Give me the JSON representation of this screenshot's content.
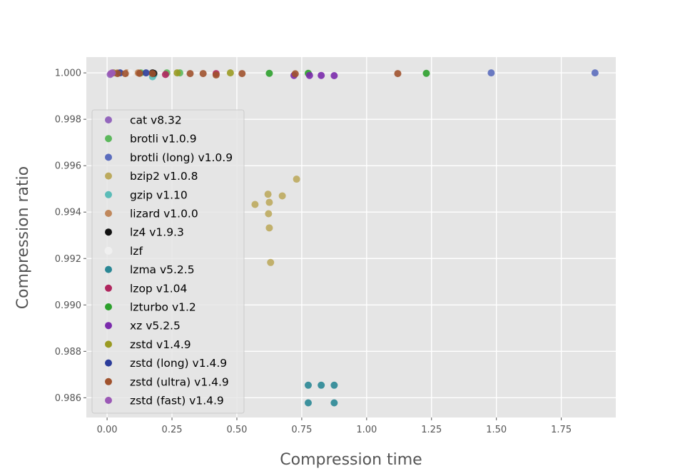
{
  "chart_data": {
    "type": "scatter",
    "title": "",
    "xlabel": "Compression time",
    "ylabel": "Compression ratio",
    "xlim": [
      -0.08,
      1.96
    ],
    "ylim": [
      0.98515,
      1.00068
    ],
    "xticks": [
      0.0,
      0.25,
      0.5,
      0.75,
      1.0,
      1.25,
      1.5,
      1.75
    ],
    "xtick_labels": [
      "0.00",
      "0.25",
      "0.50",
      "0.75",
      "1.00",
      "1.25",
      "1.50",
      "1.75"
    ],
    "yticks": [
      0.986,
      0.988,
      0.99,
      0.992,
      0.994,
      0.996,
      0.998,
      1.0
    ],
    "ytick_labels": [
      "0.986",
      "0.988",
      "0.990",
      "0.992",
      "0.994",
      "0.996",
      "0.998",
      "1.000"
    ],
    "grid": true,
    "legend_position": "left",
    "series": [
      {
        "name": "cat v8.32",
        "color": "#9467bd",
        "points": [
          [
            0.012,
            0.99993
          ]
        ]
      },
      {
        "name": "brotli v1.0.9",
        "color": "#5cb85c",
        "points": [
          [
            0.13,
            1.0
          ],
          [
            0.23,
            1.0
          ],
          [
            0.28,
            1.0
          ]
        ]
      },
      {
        "name": "brotli (long) v1.0.9",
        "color": "#5b6dbd",
        "points": [
          [
            1.48,
            1.0
          ],
          [
            1.88,
            1.0
          ]
        ]
      },
      {
        "name": "bzip2 v1.0.8",
        "color": "#bcaa5e",
        "points": [
          [
            0.57,
            0.99433
          ],
          [
            0.62,
            0.99477
          ],
          [
            0.622,
            0.99393
          ],
          [
            0.625,
            0.99442
          ],
          [
            0.625,
            0.99332
          ],
          [
            0.63,
            0.99183
          ],
          [
            0.675,
            0.9947
          ],
          [
            0.73,
            0.99542
          ]
        ]
      },
      {
        "name": "gzip v1.10",
        "color": "#5bbcb8",
        "points": [
          [
            0.175,
            0.99983
          ],
          [
            0.18,
            0.99992
          ]
        ]
      },
      {
        "name": "lizard v1.0.0",
        "color": "#c0885c",
        "points": [
          [
            0.04,
            1.0
          ],
          [
            0.075,
            1.0
          ],
          [
            0.12,
            1.0
          ]
        ]
      },
      {
        "name": "lz4 v1.9.3",
        "color": "#111111",
        "points": [
          [
            0.175,
            1.0
          ],
          [
            0.18,
            0.99998
          ]
        ]
      },
      {
        "name": "lzf",
        "color": "#f0f0f0",
        "points": [
          [
            0.062,
            1.0
          ],
          [
            0.09,
            1.0
          ]
        ]
      },
      {
        "name": "lzma v5.2.5",
        "color": "#2a8795",
        "points": [
          [
            0.775,
            0.98654
          ],
          [
            0.775,
            0.98578
          ],
          [
            0.825,
            0.98654
          ],
          [
            0.875,
            0.98654
          ],
          [
            0.875,
            0.98578
          ]
        ]
      },
      {
        "name": "lzop v1.04",
        "color": "#b0265e",
        "points": [
          [
            0.225,
            0.99993
          ],
          [
            0.42,
            0.99997
          ]
        ]
      },
      {
        "name": "lzturbo v1.2",
        "color": "#2ca02c",
        "points": [
          [
            0.625,
            0.99998
          ],
          [
            0.775,
            0.99998
          ],
          [
            1.23,
            0.99998
          ]
        ]
      },
      {
        "name": "xz v5.2.5",
        "color": "#7b2bac",
        "points": [
          [
            0.72,
            0.99989
          ],
          [
            0.78,
            0.99989
          ],
          [
            0.825,
            0.99989
          ],
          [
            0.875,
            0.99988
          ]
        ]
      },
      {
        "name": "zstd v1.4.9",
        "color": "#9a9a22",
        "points": [
          [
            0.025,
            1.0
          ],
          [
            0.27,
            1.0
          ],
          [
            0.475,
            1.0
          ]
        ]
      },
      {
        "name": "zstd (long) v1.4.9",
        "color": "#2b3c9a",
        "points": [
          [
            0.05,
            1.0
          ],
          [
            0.15,
            1.0
          ]
        ]
      },
      {
        "name": "zstd (ultra) v1.4.9",
        "color": "#a0522d",
        "points": [
          [
            0.04,
            0.99997
          ],
          [
            0.07,
            0.99997
          ],
          [
            0.125,
            0.99998
          ],
          [
            0.175,
            0.99997
          ],
          [
            0.32,
            0.99997
          ],
          [
            0.37,
            0.99997
          ],
          [
            0.42,
            0.99991
          ],
          [
            0.52,
            0.99997
          ],
          [
            0.725,
            0.99996
          ],
          [
            1.12,
            0.99997
          ]
        ]
      },
      {
        "name": "zstd (fast) v1.4.9",
        "color": "#9b59b6",
        "points": [
          [
            0.015,
            0.99997
          ],
          [
            0.02,
            1.0
          ]
        ]
      }
    ]
  }
}
